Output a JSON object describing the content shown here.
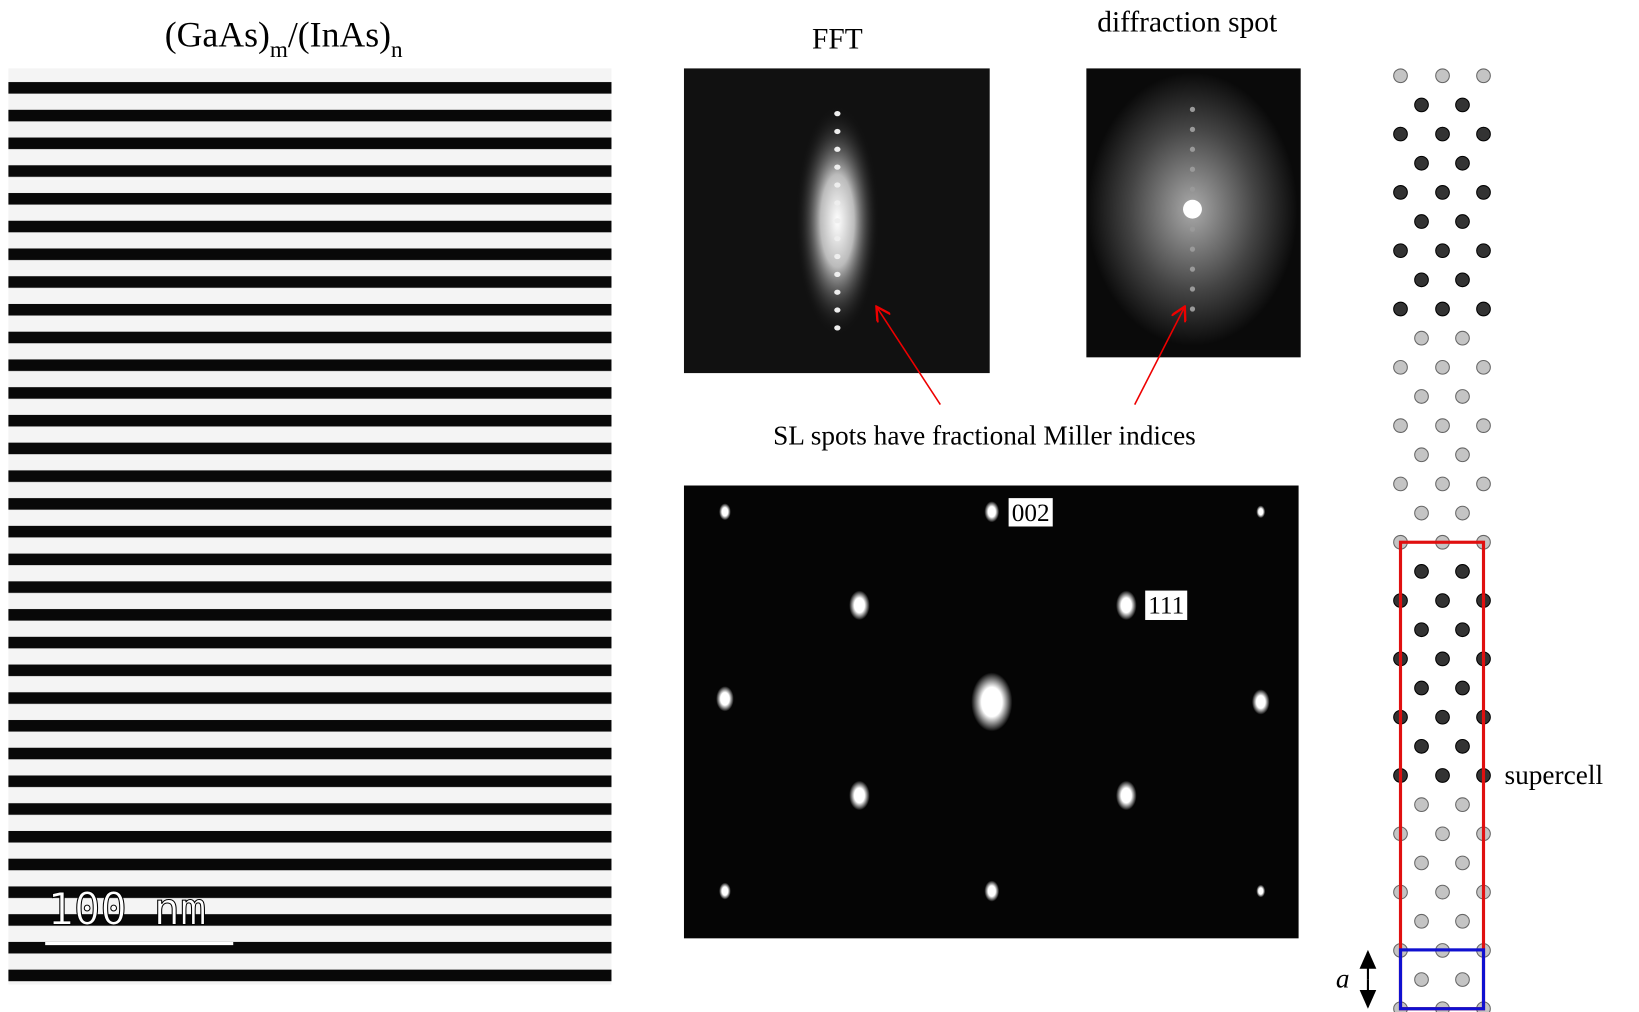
{
  "tem": {
    "title": {
      "left": "(GaAs)",
      "m": "m",
      "mid": "/(InAs)",
      "n": "n"
    },
    "scale_bar": "100 nm"
  },
  "fft": {
    "title": "FFT"
  },
  "diffraction": {
    "title": "diffraction spot"
  },
  "annotation": "SL spots have fractional Miller indices",
  "pattern": {
    "labels": [
      "002",
      "111"
    ]
  },
  "lattice": {
    "supercell": "supercell",
    "a": "a"
  }
}
